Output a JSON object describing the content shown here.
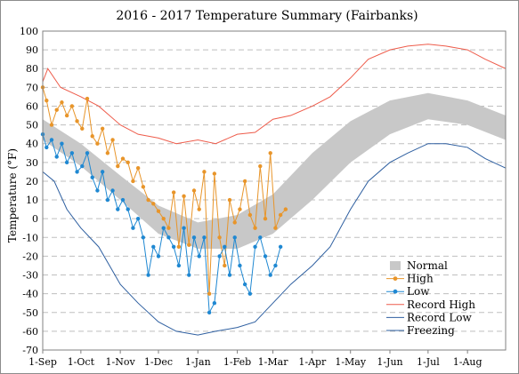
{
  "chart_data": {
    "type": "line",
    "title": "2016 - 2017 Temperature Summary (Fairbanks)",
    "ylabel": "Temperature (°F)",
    "xlabel": "",
    "ylim": [
      -70,
      100
    ],
    "y_ticks": [
      -70,
      -60,
      -50,
      -40,
      -30,
      -20,
      -10,
      0,
      10,
      20,
      30,
      40,
      50,
      60,
      70,
      80,
      90,
      100
    ],
    "xlim": [
      "2016-09-01",
      "2017-08-31"
    ],
    "x_ticks": [
      {
        "date": "2016-09-01",
        "label": "1-Sep"
      },
      {
        "date": "2016-10-01",
        "label": "1-Oct"
      },
      {
        "date": "2016-11-01",
        "label": "1-Nov"
      },
      {
        "date": "2016-12-01",
        "label": "1-Dec"
      },
      {
        "date": "2017-01-01",
        "label": "1-Jan"
      },
      {
        "date": "2017-02-01",
        "label": "1-Feb"
      },
      {
        "date": "2017-03-01",
        "label": "1-Mar"
      },
      {
        "date": "2017-04-01",
        "label": "1-Apr"
      },
      {
        "date": "2017-05-01",
        "label": "1-May"
      },
      {
        "date": "2017-06-01",
        "label": "1-Jun"
      },
      {
        "date": "2017-07-01",
        "label": "1-Jul"
      },
      {
        "date": "2017-08-01",
        "label": "1-Aug"
      }
    ],
    "grid": "horizontal dashed",
    "legend_position": "bottom-right",
    "series": [
      {
        "name": "Normal",
        "style": "band",
        "color": "#c8c8c8",
        "x": [
          "2016-09-01",
          "2016-10-01",
          "2016-11-01",
          "2016-12-01",
          "2017-01-01",
          "2017-02-01",
          "2017-03-01",
          "2017-04-01",
          "2017-05-01",
          "2017-06-01",
          "2017-07-01",
          "2017-08-01",
          "2017-08-31"
        ],
        "low": [
          42,
          28,
          10,
          -8,
          -16,
          -16,
          -8,
          10,
          30,
          45,
          53,
          50,
          42
        ],
        "high": [
          53,
          40,
          23,
          7,
          -2,
          2,
          13,
          35,
          52,
          63,
          67,
          63,
          55
        ]
      },
      {
        "name": "High",
        "style": "line-markers",
        "color": "#e8952a",
        "x": [
          "2016-09-01",
          "2016-09-04",
          "2016-09-08",
          "2016-09-12",
          "2016-09-16",
          "2016-09-20",
          "2016-09-24",
          "2016-09-28",
          "2016-10-02",
          "2016-10-06",
          "2016-10-10",
          "2016-10-14",
          "2016-10-18",
          "2016-10-22",
          "2016-10-26",
          "2016-10-30",
          "2016-11-03",
          "2016-11-07",
          "2016-11-11",
          "2016-11-15",
          "2016-11-19",
          "2016-11-23",
          "2016-11-27",
          "2016-12-01",
          "2016-12-05",
          "2016-12-09",
          "2016-12-13",
          "2016-12-17",
          "2016-12-21",
          "2016-12-25",
          "2016-12-29",
          "2017-01-02",
          "2017-01-06",
          "2017-01-10",
          "2017-01-14",
          "2017-01-18",
          "2017-01-22",
          "2017-01-26",
          "2017-01-30",
          "2017-02-03",
          "2017-02-07",
          "2017-02-11",
          "2017-02-15",
          "2017-02-19",
          "2017-02-23",
          "2017-02-27",
          "2017-03-03",
          "2017-03-07",
          "2017-03-11"
        ],
        "values": [
          70,
          63,
          50,
          58,
          62,
          55,
          60,
          52,
          48,
          64,
          44,
          40,
          48,
          35,
          42,
          28,
          32,
          30,
          20,
          27,
          17,
          10,
          8,
          4,
          0,
          -5,
          14,
          -15,
          12,
          -14,
          15,
          5,
          25,
          -40,
          24,
          -10,
          -25,
          10,
          -2,
          5,
          20,
          2,
          -5,
          28,
          0,
          35,
          -5,
          2,
          5
        ]
      },
      {
        "name": "Low",
        "style": "line-markers",
        "color": "#1f88d2",
        "x": [
          "2016-09-01",
          "2016-09-04",
          "2016-09-08",
          "2016-09-12",
          "2016-09-16",
          "2016-09-20",
          "2016-09-24",
          "2016-09-28",
          "2016-10-02",
          "2016-10-06",
          "2016-10-10",
          "2016-10-14",
          "2016-10-18",
          "2016-10-22",
          "2016-10-26",
          "2016-10-30",
          "2016-11-03",
          "2016-11-07",
          "2016-11-11",
          "2016-11-15",
          "2016-11-19",
          "2016-11-23",
          "2016-11-27",
          "2016-12-01",
          "2016-12-05",
          "2016-12-09",
          "2016-12-13",
          "2016-12-17",
          "2016-12-21",
          "2016-12-25",
          "2016-12-29",
          "2017-01-02",
          "2017-01-06",
          "2017-01-10",
          "2017-01-14",
          "2017-01-18",
          "2017-01-22",
          "2017-01-26",
          "2017-01-30",
          "2017-02-03",
          "2017-02-07",
          "2017-02-11",
          "2017-02-15",
          "2017-02-19",
          "2017-02-23",
          "2017-02-27",
          "2017-03-03",
          "2017-03-07"
        ],
        "values": [
          45,
          38,
          42,
          33,
          40,
          30,
          35,
          25,
          28,
          35,
          22,
          15,
          25,
          10,
          15,
          5,
          10,
          5,
          -5,
          0,
          -10,
          -30,
          -15,
          -20,
          -5,
          -10,
          -15,
          -25,
          -5,
          -30,
          -10,
          -20,
          -10,
          -50,
          -45,
          -20,
          -15,
          -30,
          -10,
          -25,
          -35,
          -40,
          -15,
          -10,
          -20,
          -30,
          -25,
          -15
        ]
      },
      {
        "name": "Record High",
        "style": "line",
        "color": "#ee5c4b",
        "x": [
          "2016-09-01",
          "2016-09-05",
          "2016-09-15",
          "2016-10-01",
          "2016-10-15",
          "2016-11-01",
          "2016-11-15",
          "2016-12-01",
          "2016-12-15",
          "2017-01-01",
          "2017-01-15",
          "2017-02-01",
          "2017-02-15",
          "2017-03-01",
          "2017-03-15",
          "2017-04-01",
          "2017-04-15",
          "2017-05-01",
          "2017-05-15",
          "2017-06-01",
          "2017-06-15",
          "2017-07-01",
          "2017-07-15",
          "2017-08-01",
          "2017-08-15",
          "2017-08-31"
        ],
        "values": [
          73,
          80,
          70,
          65,
          60,
          50,
          45,
          43,
          40,
          42,
          40,
          45,
          46,
          53,
          55,
          60,
          65,
          75,
          85,
          90,
          92,
          93,
          92,
          90,
          85,
          80
        ]
      },
      {
        "name": "Record Low",
        "style": "line",
        "color": "#2e5fa0",
        "x": [
          "2016-09-01",
          "2016-09-10",
          "2016-09-20",
          "2016-10-01",
          "2016-10-15",
          "2016-11-01",
          "2016-11-15",
          "2016-12-01",
          "2016-12-15",
          "2017-01-01",
          "2017-01-15",
          "2017-02-01",
          "2017-02-15",
          "2017-03-01",
          "2017-03-15",
          "2017-04-01",
          "2017-04-15",
          "2017-05-01",
          "2017-05-15",
          "2017-06-01",
          "2017-06-15",
          "2017-07-01",
          "2017-07-15",
          "2017-08-01",
          "2017-08-15",
          "2017-08-31"
        ],
        "values": [
          25,
          20,
          5,
          -5,
          -15,
          -35,
          -45,
          -55,
          -60,
          -62,
          -60,
          -58,
          -55,
          -45,
          -35,
          -25,
          -15,
          5,
          20,
          30,
          35,
          40,
          40,
          38,
          32,
          27
        ]
      },
      {
        "name": "Freezing",
        "style": "none",
        "color": "#2e5fa0",
        "values": []
      }
    ]
  }
}
